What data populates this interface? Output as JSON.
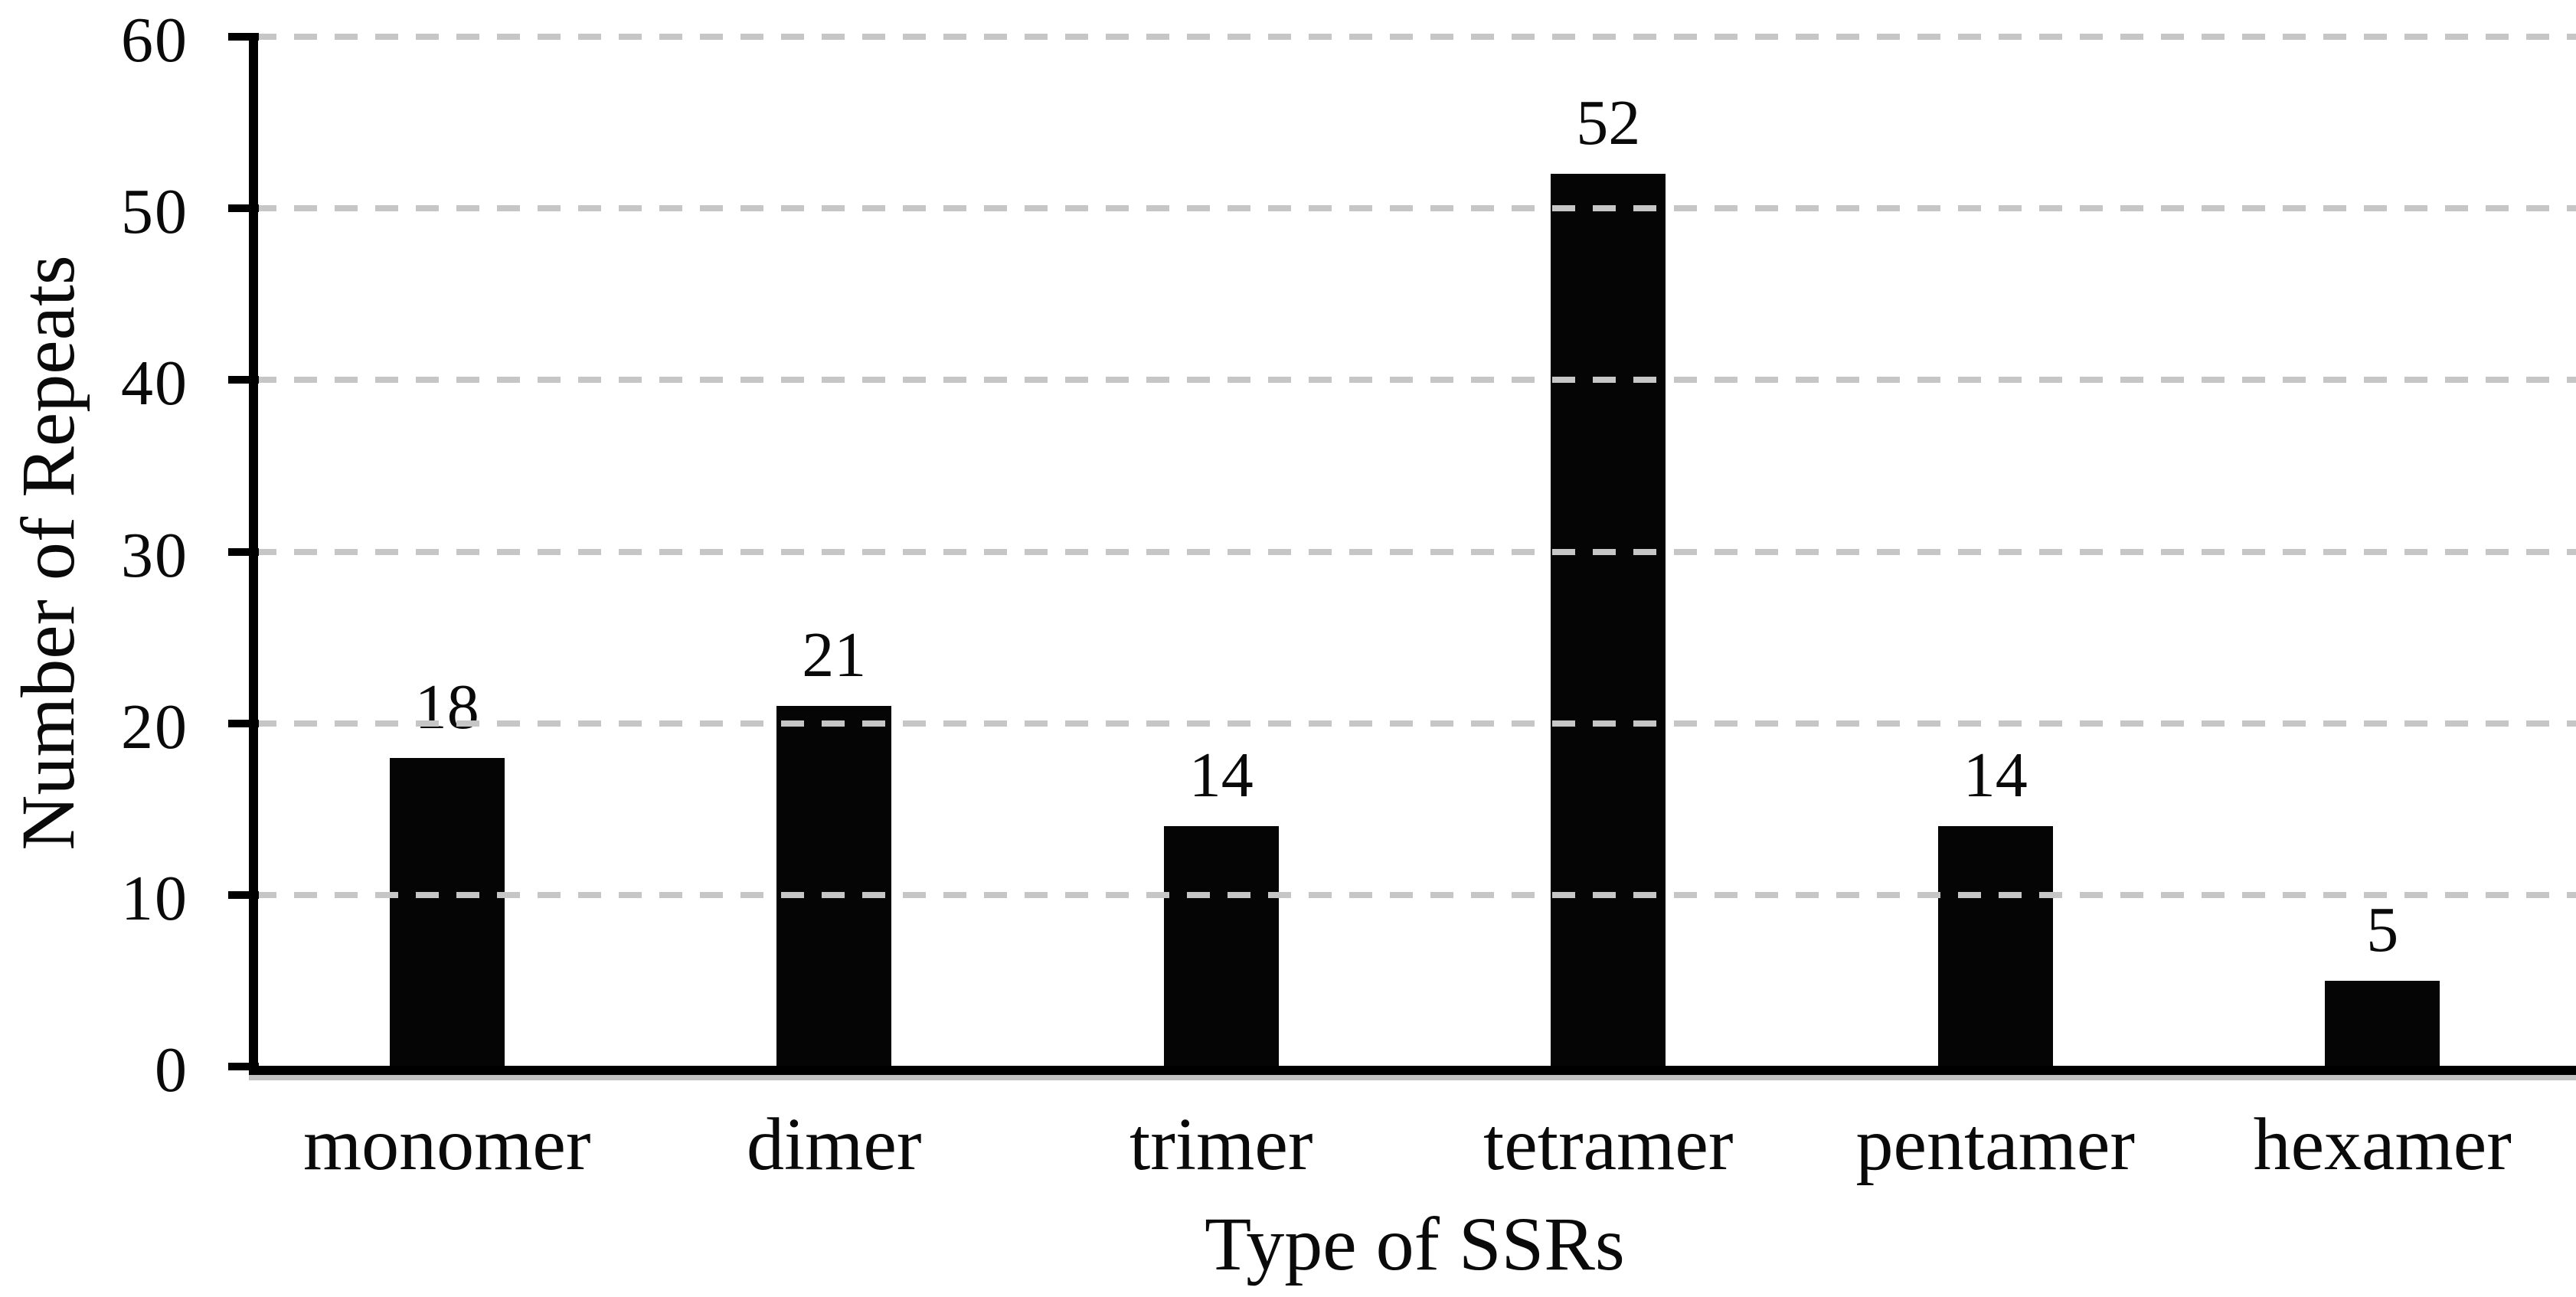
{
  "chart_data": {
    "type": "bar",
    "title": "",
    "categories": [
      "monomer",
      "dimer",
      "trimer",
      "tetramer",
      "pentamer",
      "hexamer"
    ],
    "values": [
      18,
      21,
      14,
      52,
      14,
      5
    ],
    "value_labels": [
      "18",
      "21",
      "14",
      "52",
      "14",
      "5"
    ],
    "xlabel": "Type of SSRs",
    "ylabel": "Number of Repeats",
    "ylim": [
      0,
      60
    ],
    "yticks": [
      0,
      10,
      20,
      30,
      40,
      50,
      60
    ],
    "ytick_labels": [
      "0",
      "10",
      "20",
      "30",
      "40",
      "50",
      "60"
    ],
    "grid": "horizontal-dashed",
    "legend_position": "none",
    "colors": {
      "bar": "#050505",
      "axis": "#000000",
      "gridline": "#c6c6c6",
      "text": "#0a0a0a",
      "background": "#ffffff"
    }
  }
}
